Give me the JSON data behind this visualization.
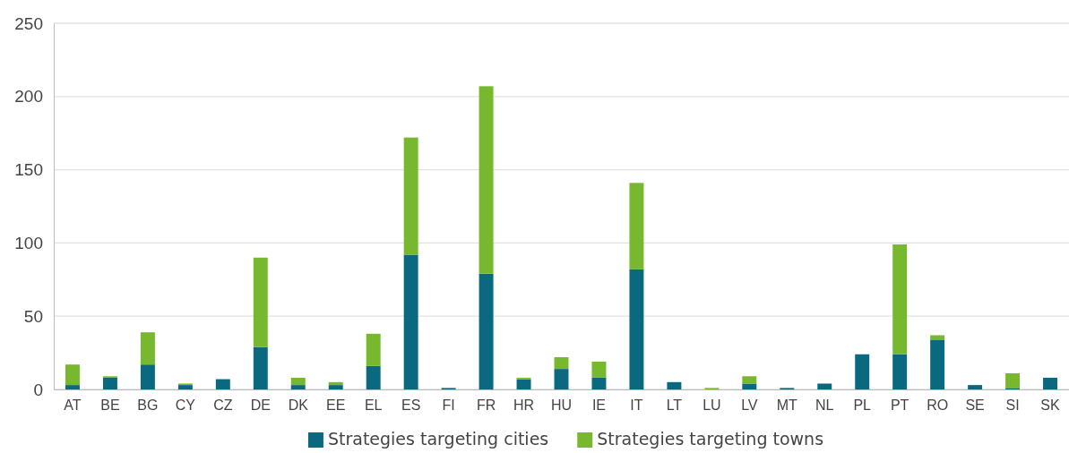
{
  "chart_data": {
    "type": "bar",
    "stacked": true,
    "categories": [
      "AT",
      "BE",
      "BG",
      "CY",
      "CZ",
      "DE",
      "DK",
      "EE",
      "EL",
      "ES",
      "FI",
      "FR",
      "HR",
      "HU",
      "IE",
      "IT",
      "LT",
      "LU",
      "LV",
      "MT",
      "NL",
      "PL",
      "PT",
      "RO",
      "SE",
      "SI",
      "SK"
    ],
    "series": [
      {
        "name": "Strategies targeting cities",
        "color": "#0b697f",
        "values": [
          3,
          8,
          17,
          3,
          7,
          29,
          3,
          3,
          16,
          92,
          1,
          79,
          7,
          14,
          8,
          82,
          5,
          0,
          4,
          1,
          4,
          24,
          24,
          34,
          3,
          1,
          8
        ]
      },
      {
        "name": "Strategies targeting towns",
        "color": "#78b82f",
        "values": [
          14,
          1,
          22,
          1,
          0,
          61,
          5,
          2,
          22,
          80,
          0,
          128,
          1,
          8,
          11,
          59,
          0,
          1,
          5,
          0,
          0,
          0,
          75,
          3,
          0,
          10,
          0
        ]
      }
    ],
    "ylim": [
      0,
      250
    ],
    "yticks": [
      0,
      50,
      100,
      150,
      200,
      250
    ],
    "grid": "y",
    "legend": "bottom"
  }
}
